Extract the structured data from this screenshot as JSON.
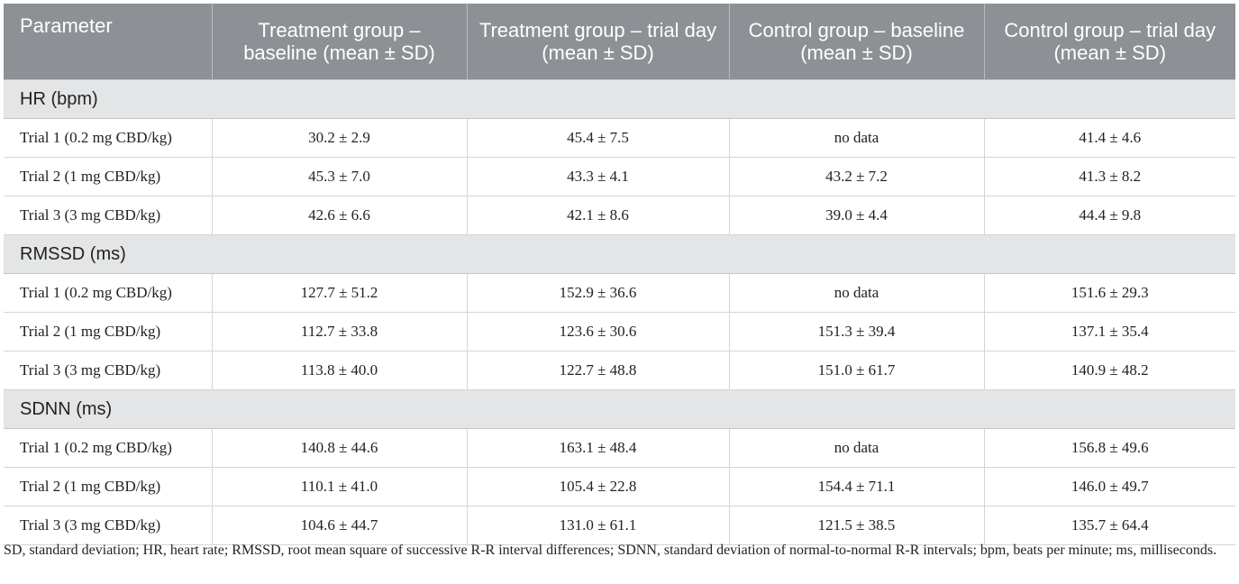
{
  "table": {
    "headers": [
      "Parameter",
      "Treatment group – baseline (mean ± SD)",
      "Treatment group – trial day (mean ± SD)",
      "Control group – baseline (mean ± SD)",
      "Control group – trial day (mean ± SD)"
    ],
    "sections": [
      {
        "title": "HR (bpm)",
        "rows": [
          [
            "Trial 1 (0.2 mg CBD/kg)",
            "30.2 ± 2.9",
            "45.4 ± 7.5",
            "no data",
            "41.4 ± 4.6"
          ],
          [
            "Trial 2 (1 mg CBD/kg)",
            "45.3 ± 7.0",
            "43.3 ± 4.1",
            "43.2 ± 7.2",
            "41.3 ± 8.2"
          ],
          [
            "Trial 3 (3 mg CBD/kg)",
            "42.6 ± 6.6",
            "42.1 ± 8.6",
            "39.0 ± 4.4",
            "44.4 ± 9.8"
          ]
        ]
      },
      {
        "title": "RMSSD (ms)",
        "rows": [
          [
            "Trial 1 (0.2 mg CBD/kg)",
            "127.7 ± 51.2",
            "152.9 ± 36.6",
            "no data",
            "151.6 ± 29.3"
          ],
          [
            "Trial 2 (1 mg CBD/kg)",
            "112.7 ± 33.8",
            "123.6 ± 30.6",
            "151.3 ± 39.4",
            "137.1 ± 35.4"
          ],
          [
            "Trial 3 (3 mg CBD/kg)",
            "113.8 ± 40.0",
            "122.7 ± 48.8",
            "151.0 ± 61.7",
            "140.9 ± 48.2"
          ]
        ]
      },
      {
        "title": "SDNN (ms)",
        "rows": [
          [
            "Trial 1 (0.2 mg CBD/kg)",
            "140.8 ± 44.6",
            "163.1 ± 48.4",
            "no data",
            "156.8 ± 49.6"
          ],
          [
            "Trial 2 (1 mg CBD/kg)",
            "110.1 ± 41.0",
            "105.4 ± 22.8",
            "154.4 ± 71.1",
            "146.0 ± 49.7"
          ],
          [
            "Trial 3 (3 mg CBD/kg)",
            "104.6 ± 44.7",
            "131.0 ± 61.1",
            "121.5 ± 38.5",
            "135.7 ± 64.4"
          ]
        ]
      }
    ]
  },
  "footnote": "SD, standard deviation; HR, heart rate; RMSSD, root mean square of successive R-R interval differences; SDNN, standard deviation of normal-to-normal R-R intervals; bpm, beats per minute; ms, milliseconds."
}
